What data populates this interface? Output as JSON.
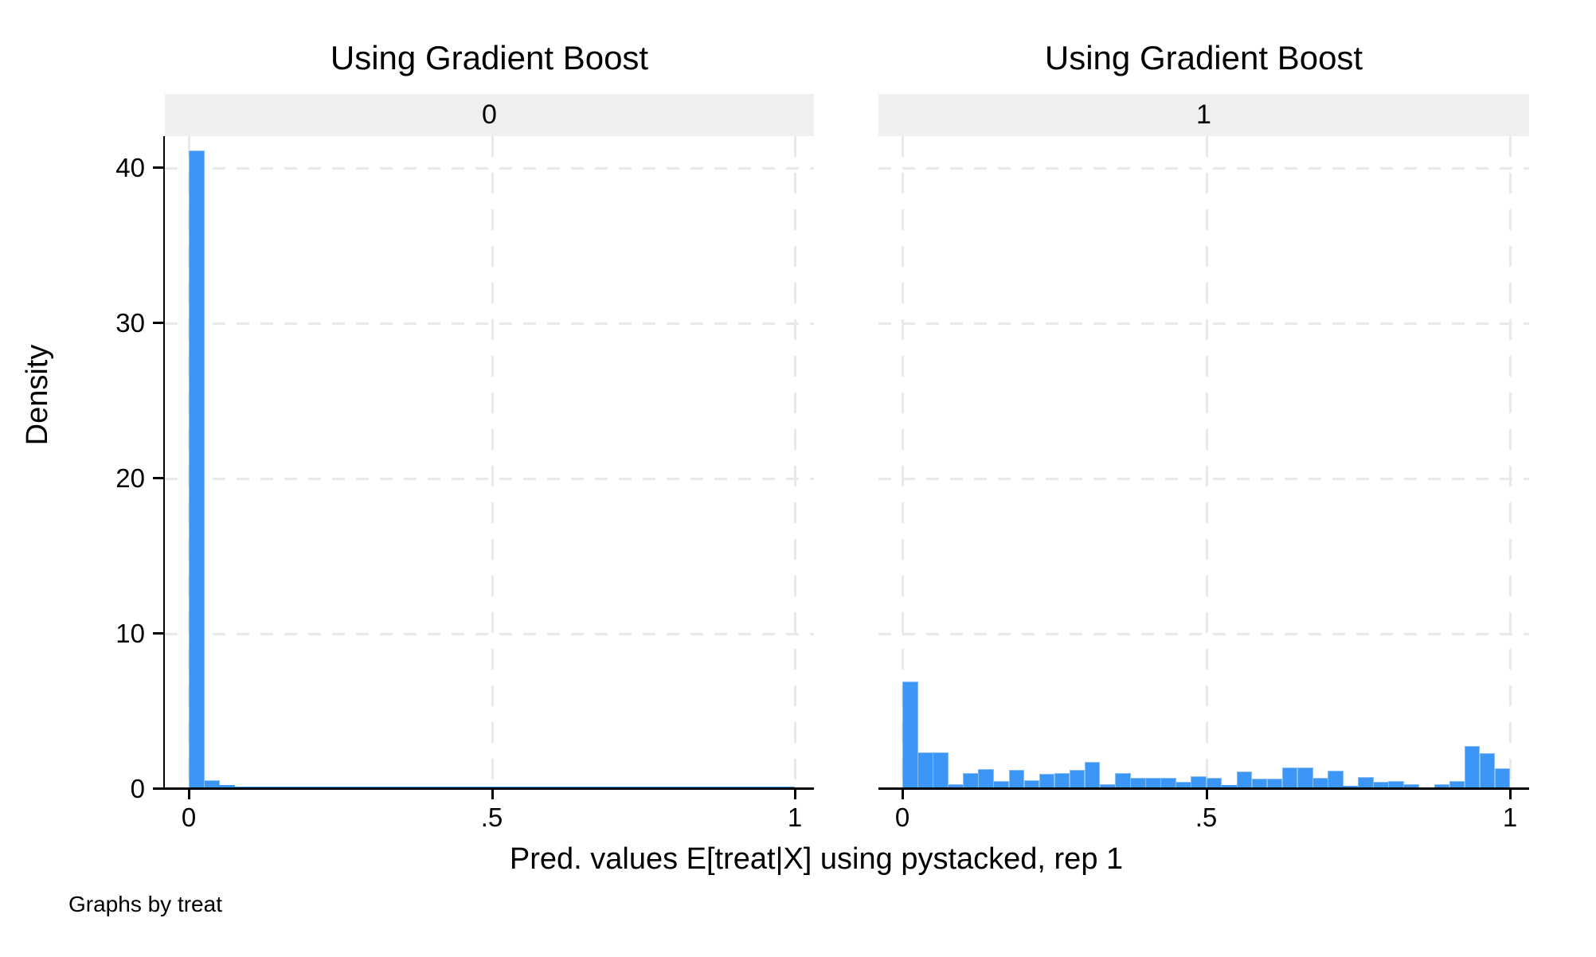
{
  "chart_data": {
    "type": "bar",
    "subtype": "faceted-histogram",
    "xlabel": "Pred. values E[treat|X] using pystacked, rep 1",
    "ylabel": "Density",
    "note": "Graphs by treat",
    "x_domain": [
      0,
      1
    ],
    "y_domain": [
      0,
      42
    ],
    "bin_width": 0.025,
    "grid": "dashed",
    "x_ticks": [
      {
        "value": 0.0,
        "label": "0"
      },
      {
        "value": 0.5,
        "label": ".5"
      },
      {
        "value": 1.0,
        "label": "1"
      }
    ],
    "y_ticks": [
      {
        "value": 0,
        "label": "0"
      },
      {
        "value": 10,
        "label": "10"
      },
      {
        "value": 20,
        "label": "20"
      },
      {
        "value": 30,
        "label": "30"
      },
      {
        "value": 40,
        "label": "40"
      }
    ],
    "panels": [
      {
        "title": "Using Gradient Boost",
        "by_label": "0",
        "bin_start": 0,
        "densities": [
          41,
          0.45,
          0.15,
          0.05,
          0.05,
          0.05,
          0.05,
          0.05,
          0.05,
          0.05,
          0.05,
          0.05,
          0.05,
          0.05,
          0.05,
          0.05,
          0.05,
          0.05,
          0.05,
          0.05,
          0.05,
          0.05,
          0.05,
          0.05,
          0.05,
          0.05,
          0.05,
          0.05,
          0.05,
          0.05,
          0.05,
          0.05,
          0.05,
          0.05,
          0.05,
          0.05,
          0.05,
          0.05,
          0.05,
          0.05
        ]
      },
      {
        "title": "Using Gradient Boost",
        "by_label": "1",
        "bin_start": 0,
        "densities": [
          6.8,
          2.25,
          2.25,
          0.2,
          0.9,
          1.2,
          0.4,
          1.15,
          0.45,
          0.85,
          0.9,
          1.15,
          1.65,
          0.2,
          0.9,
          0.6,
          0.6,
          0.6,
          0.35,
          0.7,
          0.6,
          0.15,
          1.05,
          0.55,
          0.55,
          1.3,
          1.3,
          0.6,
          1.1,
          0.1,
          0.65,
          0.35,
          0.4,
          0.2,
          0,
          0.2,
          0.4,
          2.65,
          2.2,
          1.25
        ]
      }
    ],
    "colors": {
      "bar_fill": "#3B96F5",
      "bar_edge": "#85BCF7",
      "gridline": "#E9E9E9",
      "band_background": "#EFEFEF",
      "axis": "#000000",
      "background": "#FFFFFF"
    }
  }
}
